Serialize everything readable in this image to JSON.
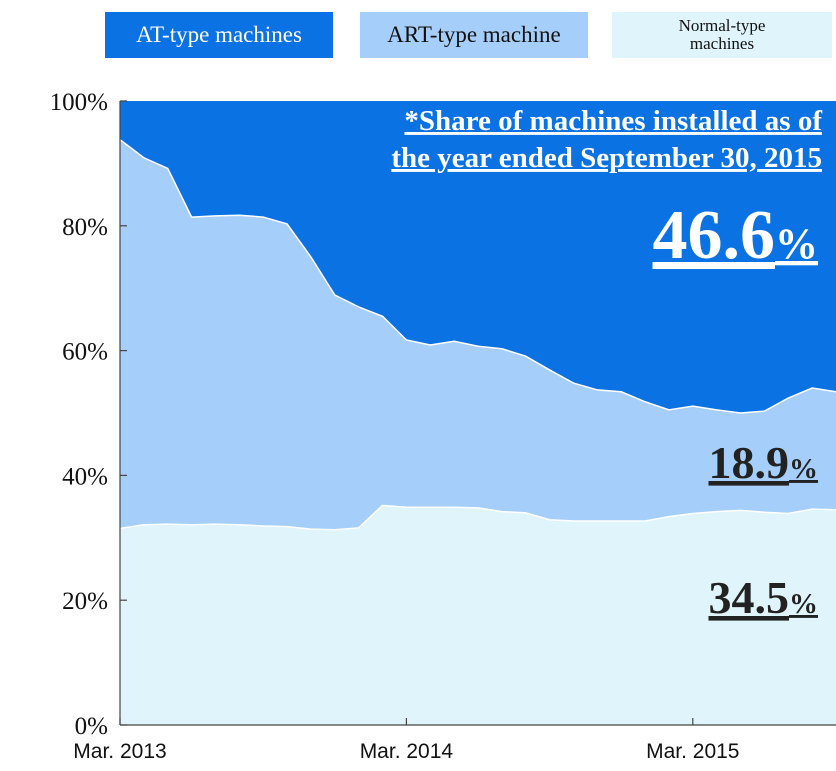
{
  "chart_data": {
    "type": "stacked_area",
    "categories": [
      "Mar. 2013",
      null,
      null,
      null,
      null,
      null,
      null,
      null,
      null,
      null,
      null,
      null,
      "Mar. 2014",
      null,
      null,
      null,
      null,
      null,
      null,
      null,
      null,
      null,
      null,
      null,
      "Mar. 2015",
      null,
      null,
      null,
      null,
      null,
      null
    ],
    "series": [
      {
        "name": "AT-type machines",
        "color": "#0b72e3",
        "label": "46.6%",
        "values": [
          6.2,
          9.1,
          10.8,
          18.6,
          18.4,
          18.3,
          18.6,
          19.7,
          25,
          31.1,
          33,
          34.5,
          38.3,
          39.1,
          38.5,
          39.3,
          39.7,
          40.9,
          43.1,
          45.2,
          46.3,
          46.6,
          48.2,
          49.5,
          48.9,
          49.5,
          50,
          49.7,
          47.6,
          46,
          46.6
        ]
      },
      {
        "name": "ART-type machine",
        "color": "#a5cffa",
        "label": "18.9%",
        "values": [
          62.3,
          58.8,
          57,
          49.3,
          49.4,
          49.6,
          49.5,
          48.5,
          43.6,
          37.6,
          35.4,
          30.3,
          26.8,
          26,
          26.6,
          25.9,
          26.1,
          25.1,
          24,
          22.1,
          21,
          20.7,
          19.1,
          17.1,
          17.2,
          16.3,
          15.6,
          16.2,
          18.5,
          19.4,
          18.9
        ]
      },
      {
        "name": "Normal-type machines",
        "color": "#dff4fb",
        "label": "34.5%",
        "values": [
          31.5,
          32.1,
          32.2,
          32.1,
          32.2,
          32.1,
          31.9,
          31.8,
          31.4,
          31.3,
          31.6,
          35.2,
          34.9,
          34.9,
          34.9,
          34.8,
          34.2,
          34,
          32.9,
          32.7,
          32.7,
          32.7,
          32.7,
          33.4,
          33.9,
          34.2,
          34.4,
          34.1,
          33.9,
          34.6,
          34.5
        ]
      }
    ],
    "annotation_lines": [
      "*Share of machines installed as of",
      "the year ended September 30, 2015"
    ],
    "ylim": [
      0,
      100
    ],
    "yticks": [
      {
        "value": 0,
        "label": "0%"
      },
      {
        "value": 20,
        "label": "20%"
      },
      {
        "value": 40,
        "label": "40%"
      },
      {
        "value": 60,
        "label": "60%"
      },
      {
        "value": 80,
        "label": "80%"
      },
      {
        "value": 100,
        "label": "100%"
      }
    ]
  }
}
